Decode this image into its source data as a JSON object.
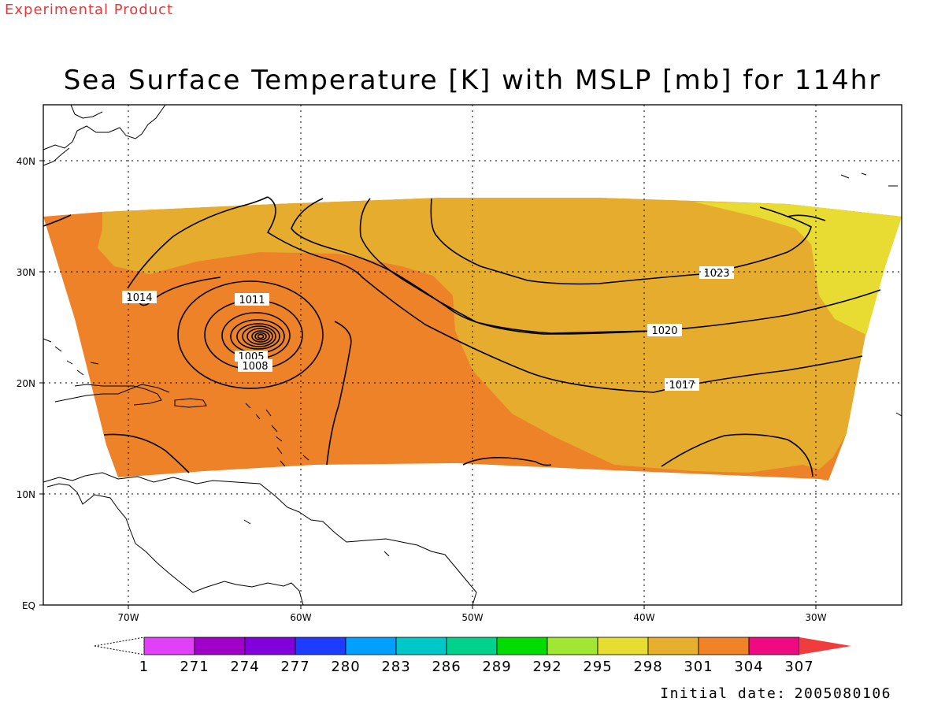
{
  "header": {
    "experimental_label": "Experimental Product",
    "title": "Sea Surface Temperature [K] with MSLP [mb] for 114hr"
  },
  "footer": {
    "initial_date_label": "Initial date:",
    "initial_date_value": "2005080106"
  },
  "colors": {
    "experimental_text": "#e03a3a",
    "sst_296": "#e8dc32",
    "sst_298": "#e5ac2e",
    "sst_301": "#ee8228"
  },
  "map": {
    "lat_ticks": [
      "EQ",
      "10N",
      "20N",
      "30N",
      "40N"
    ],
    "lon_ticks": [
      "70W",
      "60W",
      "50W",
      "40W",
      "30W"
    ],
    "grid": "dotted"
  },
  "isobar_labels": [
    "1005",
    "1008",
    "1011",
    "1014",
    "1017",
    "1020",
    "1023"
  ],
  "colorbar": {
    "labels": [
      "1",
      "271",
      "274",
      "277",
      "280",
      "283",
      "286",
      "289",
      "292",
      "295",
      "298",
      "301",
      "304",
      "307"
    ],
    "colors": [
      "#e040f8",
      "#a000c8",
      "#8200dc",
      "#1e3cff",
      "#00a0ff",
      "#00c8c8",
      "#00d28c",
      "#00dc00",
      "#a0e632",
      "#e6dc32",
      "#e6af2d",
      "#f08228",
      "#f00a82",
      "#f03c3c"
    ]
  }
}
